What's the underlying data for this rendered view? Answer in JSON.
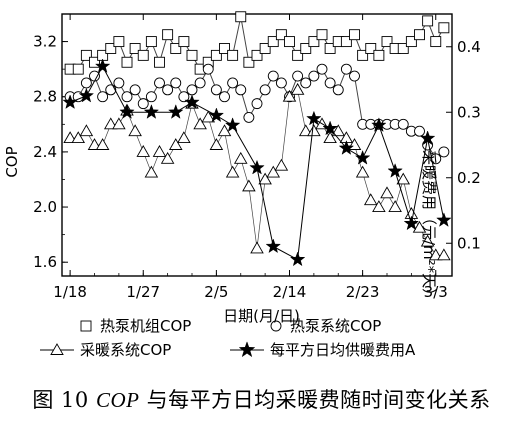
{
  "caption": {
    "prefix": "图 10 ",
    "italic": "COP",
    "suffix": " 与每平方日均采暖费随时间变化关系"
  },
  "chart_data": {
    "type": "line",
    "xlabel": "日期(月/日)",
    "ylabel_left": "COP",
    "ylabel_right": "采暖费用（元/m²*天）",
    "x_ticks": [
      "1/18",
      "1/27",
      "2/5",
      "2/14",
      "2/23",
      "3/3"
    ],
    "x_tick_days": [
      0,
      9,
      18,
      27,
      36,
      45
    ],
    "ylim_left": [
      1.5,
      3.4
    ],
    "yticks_left": [
      1.6,
      2.0,
      2.4,
      2.8,
      3.2
    ],
    "ylim_right": [
      0.05,
      0.45
    ],
    "yticks_right": [
      0.1,
      0.2,
      0.3,
      0.4
    ],
    "legend": [
      {
        "name": "热泵机组COP",
        "marker": "square"
      },
      {
        "name": "热泵系统COP",
        "marker": "circle"
      },
      {
        "name": "采暖系统COP",
        "marker": "triangle"
      },
      {
        "name": "每平方日均供暖费用A",
        "marker": "star"
      }
    ],
    "series": [
      {
        "name": "热泵机组COP",
        "axis": "left",
        "marker": "square",
        "linestyle": "solid",
        "x": [
          0,
          1,
          2,
          3,
          4,
          5,
          6,
          7,
          8,
          9,
          10,
          11,
          12,
          13,
          14,
          15,
          16,
          17,
          18,
          19,
          20,
          21,
          22,
          23,
          24,
          25,
          26,
          27,
          28,
          29,
          30,
          31,
          32,
          33,
          34,
          35,
          36,
          37,
          38,
          39,
          40,
          41,
          42,
          43,
          44,
          45,
          46
        ],
        "y": [
          3.0,
          3.0,
          3.1,
          3.05,
          3.1,
          3.15,
          3.2,
          3.05,
          3.15,
          3.1,
          3.2,
          3.05,
          3.25,
          3.15,
          3.2,
          3.1,
          3.0,
          3.05,
          3.1,
          3.15,
          3.1,
          3.38,
          3.05,
          3.1,
          3.15,
          3.2,
          3.25,
          3.2,
          3.1,
          3.15,
          3.2,
          3.25,
          3.15,
          3.2,
          3.2,
          3.25,
          3.1,
          3.15,
          3.1,
          3.2,
          3.15,
          3.15,
          3.2,
          3.25,
          3.35,
          3.2,
          3.3
        ]
      },
      {
        "name": "热泵系统COP",
        "axis": "left",
        "marker": "circle",
        "linestyle": "solid",
        "x": [
          0,
          1,
          2,
          3,
          4,
          5,
          6,
          7,
          8,
          9,
          10,
          11,
          12,
          13,
          14,
          15,
          16,
          17,
          18,
          19,
          20,
          21,
          22,
          23,
          24,
          25,
          26,
          27,
          28,
          29,
          30,
          31,
          32,
          33,
          34,
          35,
          36,
          37,
          38,
          39,
          40,
          41,
          42,
          43,
          44,
          45,
          46
        ],
        "y": [
          2.8,
          2.8,
          2.9,
          2.95,
          2.8,
          2.85,
          2.9,
          2.8,
          2.85,
          2.75,
          2.8,
          2.9,
          2.85,
          2.9,
          2.8,
          2.85,
          2.9,
          3.0,
          2.85,
          2.8,
          2.9,
          2.85,
          2.65,
          2.75,
          2.85,
          2.95,
          2.9,
          2.8,
          2.95,
          2.9,
          2.95,
          3.0,
          2.9,
          2.85,
          3.0,
          2.95,
          2.6,
          2.6,
          2.6,
          2.6,
          2.6,
          2.6,
          2.55,
          2.55,
          2.45,
          2.35,
          2.4
        ]
      },
      {
        "name": "采暖系统COP",
        "axis": "left",
        "marker": "triangle",
        "linestyle": "thin",
        "x": [
          0,
          1,
          2,
          3,
          4,
          5,
          6,
          7,
          8,
          9,
          10,
          11,
          12,
          13,
          14,
          15,
          16,
          17,
          18,
          19,
          20,
          21,
          22,
          23,
          24,
          25,
          26,
          27,
          28,
          29,
          30,
          31,
          32,
          33,
          34,
          35,
          36,
          37,
          38,
          39,
          40,
          41,
          42,
          43,
          44,
          45,
          46
        ],
        "y": [
          2.5,
          2.5,
          2.55,
          2.45,
          2.45,
          2.6,
          2.6,
          2.7,
          2.55,
          2.4,
          2.25,
          2.4,
          2.35,
          2.45,
          2.5,
          2.75,
          2.6,
          2.65,
          2.45,
          2.55,
          2.25,
          2.35,
          2.15,
          1.7,
          2.2,
          2.25,
          2.3,
          2.8,
          2.85,
          2.55,
          2.55,
          2.6,
          2.5,
          2.55,
          2.5,
          2.45,
          2.25,
          2.05,
          2.0,
          2.1,
          2.0,
          2.2,
          1.95,
          1.85,
          1.75,
          1.65,
          1.65
        ]
      },
      {
        "name": "每平方日均供暖费用A",
        "axis": "right",
        "marker": "star",
        "linestyle": "solid",
        "x": [
          0,
          2,
          4,
          7,
          10,
          13,
          15,
          18,
          20,
          23,
          25,
          28,
          30,
          32,
          34,
          36,
          38,
          40,
          42,
          44,
          46
        ],
        "y": [
          0.315,
          0.325,
          0.37,
          0.3,
          0.3,
          0.3,
          0.315,
          0.295,
          0.28,
          0.215,
          0.095,
          0.075,
          0.29,
          0.275,
          0.245,
          0.23,
          0.28,
          0.21,
          0.13,
          0.26,
          0.135
        ]
      }
    ]
  }
}
